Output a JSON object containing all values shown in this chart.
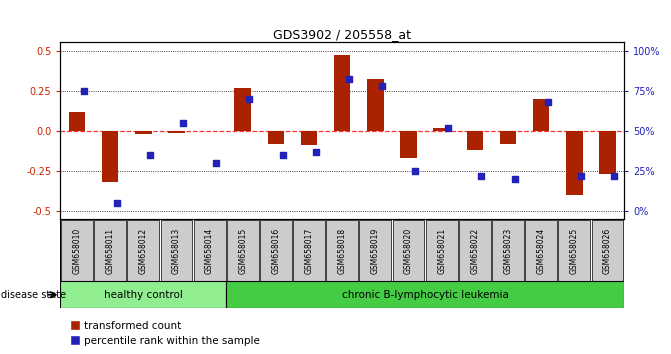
{
  "title": "GDS3902 / 205558_at",
  "samples": [
    "GSM658010",
    "GSM658011",
    "GSM658012",
    "GSM658013",
    "GSM658014",
    "GSM658015",
    "GSM658016",
    "GSM658017",
    "GSM658018",
    "GSM658019",
    "GSM658020",
    "GSM658021",
    "GSM658022",
    "GSM658023",
    "GSM658024",
    "GSM658025",
    "GSM658026"
  ],
  "red_values": [
    0.12,
    -0.32,
    -0.02,
    -0.01,
    0.0,
    0.27,
    -0.08,
    -0.09,
    0.47,
    0.32,
    -0.17,
    0.02,
    -0.12,
    -0.08,
    0.2,
    -0.4,
    -0.27
  ],
  "blue_pct": [
    75,
    5,
    35,
    55,
    30,
    70,
    35,
    37,
    82,
    78,
    25,
    52,
    22,
    20,
    68,
    22,
    22
  ],
  "healthy_count": 5,
  "ylim": [
    -0.55,
    0.55
  ],
  "yticks_red": [
    -0.5,
    -0.25,
    0.0,
    0.25,
    0.5
  ],
  "yticks_blue_pct": [
    0,
    25,
    50,
    75,
    100
  ],
  "bar_color": "#aa2200",
  "dot_color": "#2222bb",
  "healthy_color": "#90ee90",
  "leukemia_color": "#44cc44",
  "label_color_red": "#cc2200",
  "label_color_blue": "#2222bb",
  "bg_color": "#ffffff",
  "tick_bg": "#cccccc",
  "legend_red": "transformed count",
  "legend_blue": "percentile rank within the sample",
  "healthy_label": "healthy control",
  "leukemia_label": "chronic B-lymphocytic leukemia",
  "disease_state_label": "disease state"
}
